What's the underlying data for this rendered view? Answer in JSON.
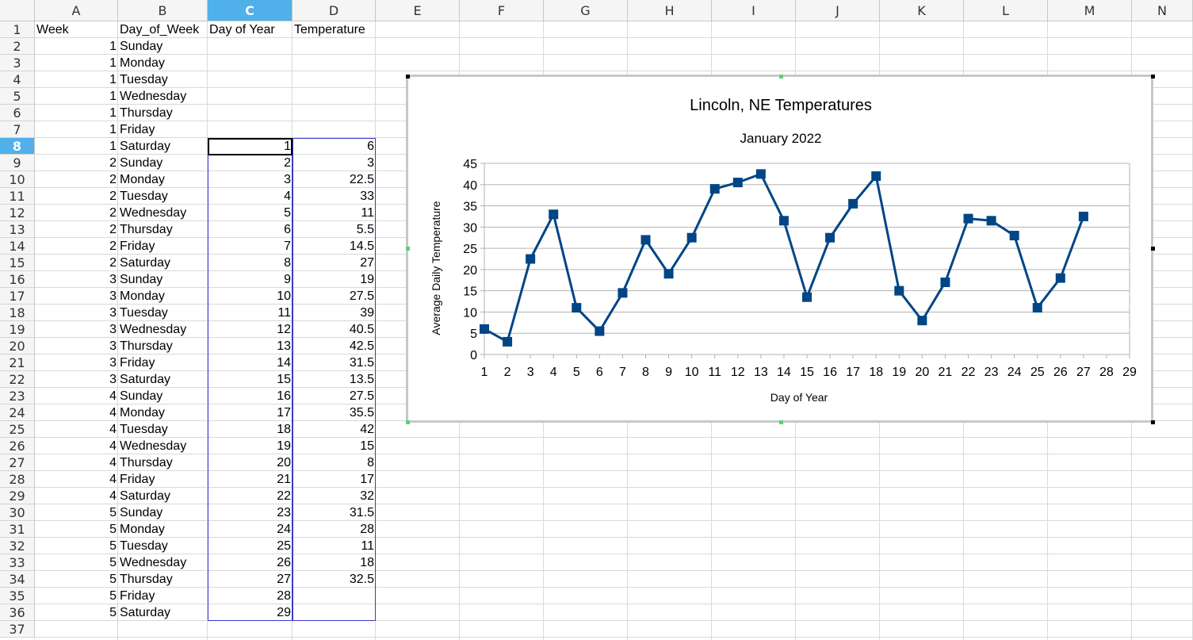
{
  "columns": [
    "A",
    "B",
    "C",
    "D",
    "E",
    "F",
    "G",
    "H",
    "I",
    "J",
    "K",
    "L",
    "M",
    "N"
  ],
  "active_column": "C",
  "active_row": 8,
  "rows_visible": 37,
  "headers": {
    "A": "Week",
    "B": "Day_of_Week",
    "C": "Day of Year",
    "D": "Temperature"
  },
  "table": [
    {
      "week": "1",
      "day": "Sunday",
      "doy": "",
      "temp": ""
    },
    {
      "week": "1",
      "day": "Monday",
      "doy": "",
      "temp": ""
    },
    {
      "week": "1",
      "day": "Tuesday",
      "doy": "",
      "temp": ""
    },
    {
      "week": "1",
      "day": "Wednesday",
      "doy": "",
      "temp": ""
    },
    {
      "week": "1",
      "day": "Thursday",
      "doy": "",
      "temp": ""
    },
    {
      "week": "1",
      "day": "Friday",
      "doy": "",
      "temp": ""
    },
    {
      "week": "1",
      "day": "Saturday",
      "doy": "1",
      "temp": "6"
    },
    {
      "week": "2",
      "day": "Sunday",
      "doy": "2",
      "temp": "3"
    },
    {
      "week": "2",
      "day": "Monday",
      "doy": "3",
      "temp": "22.5"
    },
    {
      "week": "2",
      "day": "Tuesday",
      "doy": "4",
      "temp": "33"
    },
    {
      "week": "2",
      "day": "Wednesday",
      "doy": "5",
      "temp": "11"
    },
    {
      "week": "2",
      "day": "Thursday",
      "doy": "6",
      "temp": "5.5"
    },
    {
      "week": "2",
      "day": "Friday",
      "doy": "7",
      "temp": "14.5"
    },
    {
      "week": "2",
      "day": "Saturday",
      "doy": "8",
      "temp": "27"
    },
    {
      "week": "3",
      "day": "Sunday",
      "doy": "9",
      "temp": "19"
    },
    {
      "week": "3",
      "day": "Monday",
      "doy": "10",
      "temp": "27.5"
    },
    {
      "week": "3",
      "day": "Tuesday",
      "doy": "11",
      "temp": "39"
    },
    {
      "week": "3",
      "day": "Wednesday",
      "doy": "12",
      "temp": "40.5"
    },
    {
      "week": "3",
      "day": "Thursday",
      "doy": "13",
      "temp": "42.5"
    },
    {
      "week": "3",
      "day": "Friday",
      "doy": "14",
      "temp": "31.5"
    },
    {
      "week": "3",
      "day": "Saturday",
      "doy": "15",
      "temp": "13.5"
    },
    {
      "week": "4",
      "day": "Sunday",
      "doy": "16",
      "temp": "27.5"
    },
    {
      "week": "4",
      "day": "Monday",
      "doy": "17",
      "temp": "35.5"
    },
    {
      "week": "4",
      "day": "Tuesday",
      "doy": "18",
      "temp": "42"
    },
    {
      "week": "4",
      "day": "Wednesday",
      "doy": "19",
      "temp": "15"
    },
    {
      "week": "4",
      "day": "Thursday",
      "doy": "20",
      "temp": "8"
    },
    {
      "week": "4",
      "day": "Friday",
      "doy": "21",
      "temp": "17"
    },
    {
      "week": "4",
      "day": "Saturday",
      "doy": "22",
      "temp": "32"
    },
    {
      "week": "5",
      "day": "Sunday",
      "doy": "23",
      "temp": "31.5"
    },
    {
      "week": "5",
      "day": "Monday",
      "doy": "24",
      "temp": "28"
    },
    {
      "week": "5",
      "day": "Tuesday",
      "doy": "25",
      "temp": "11"
    },
    {
      "week": "5",
      "day": "Wednesday",
      "doy": "26",
      "temp": "18"
    },
    {
      "week": "5",
      "day": "Thursday",
      "doy": "27",
      "temp": "32.5"
    },
    {
      "week": "5",
      "day": "Friday",
      "doy": "28",
      "temp": ""
    },
    {
      "week": "5",
      "day": "Saturday",
      "doy": "29",
      "temp": ""
    }
  ],
  "chart_data": {
    "type": "line",
    "title": "Lincoln, NE Temperatures",
    "subtitle": "January 2022",
    "xlabel": "Day of Year",
    "ylabel": "Average Daily Temperature",
    "x": [
      1,
      2,
      3,
      4,
      5,
      6,
      7,
      8,
      9,
      10,
      11,
      12,
      13,
      14,
      15,
      16,
      17,
      18,
      19,
      20,
      21,
      22,
      23,
      24,
      25,
      26,
      27
    ],
    "y": [
      6,
      3,
      22.5,
      33,
      11,
      5.5,
      14.5,
      27,
      19,
      27.5,
      39,
      40.5,
      42.5,
      31.5,
      13.5,
      27.5,
      35.5,
      42,
      15,
      8,
      17,
      32,
      31.5,
      28,
      11,
      18,
      32.5
    ],
    "xlim": [
      1,
      29
    ],
    "ylim": [
      0,
      45
    ],
    "yticks": [
      0,
      5,
      10,
      15,
      20,
      25,
      30,
      35,
      40,
      45
    ],
    "xticks": [
      1,
      2,
      3,
      4,
      5,
      6,
      7,
      8,
      9,
      10,
      11,
      12,
      13,
      14,
      15,
      16,
      17,
      18,
      19,
      20,
      21,
      22,
      23,
      24,
      25,
      26,
      27,
      28,
      29
    ],
    "grid": true,
    "legend": "none",
    "series_color": "#004586",
    "marker": "square"
  }
}
